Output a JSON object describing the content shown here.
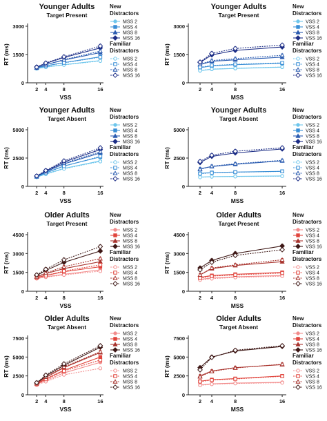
{
  "chart_data": [
    {
      "type": "line",
      "title": "Younger Adults",
      "subtitle": "Target Present",
      "xlabel": "VSS",
      "ylabel": "RT (ms)",
      "x": [
        2,
        4,
        8,
        16
      ],
      "xticks": [
        "2",
        "4",
        "8",
        "16"
      ],
      "ylim": [
        0,
        3000
      ],
      "yticks": [
        0,
        1500,
        3000
      ],
      "legend": {
        "group1": "New Distractors",
        "group2": "Familiar Distractors"
      },
      "palette": "blue",
      "series": [
        {
          "name": "MSS 2",
          "group": "new",
          "values": [
            760,
            840,
            960,
            1180
          ]
        },
        {
          "name": "MSS 4",
          "group": "new",
          "values": [
            790,
            900,
            1070,
            1380
          ]
        },
        {
          "name": "MSS 8",
          "group": "new",
          "values": [
            810,
            960,
            1210,
            1600
          ]
        },
        {
          "name": "MSS 16",
          "group": "new",
          "values": [
            840,
            1030,
            1340,
            1850
          ]
        },
        {
          "name": "MSS 2",
          "group": "familiar",
          "values": [
            750,
            830,
            950,
            1160
          ]
        },
        {
          "name": "MSS 4",
          "group": "familiar",
          "values": [
            780,
            890,
            1060,
            1360
          ]
        },
        {
          "name": "MSS 8",
          "group": "familiar",
          "values": [
            800,
            960,
            1230,
            1680
          ]
        },
        {
          "name": "MSS 16",
          "group": "familiar",
          "values": [
            830,
            1050,
            1380,
            1950
          ]
        }
      ]
    },
    {
      "type": "line",
      "title": "Younger Adults",
      "subtitle": "Target Present",
      "xlabel": "MSS",
      "ylabel": "RT (ms)",
      "x": [
        2,
        4,
        8,
        16
      ],
      "xticks": [
        "2",
        "4",
        "8",
        "16"
      ],
      "ylim": [
        0,
        3000
      ],
      "yticks": [
        0,
        1500,
        3000
      ],
      "legend": {
        "group1": "New Distractors",
        "group2": "Familiar Distractors"
      },
      "palette": "blue",
      "series": [
        {
          "name": "VSS 2",
          "group": "new",
          "values": [
            640,
            720,
            760,
            830
          ]
        },
        {
          "name": "VSS 4",
          "group": "new",
          "values": [
            800,
            900,
            960,
            1030
          ]
        },
        {
          "name": "VSS 8",
          "group": "new",
          "values": [
            960,
            1140,
            1220,
            1360
          ]
        },
        {
          "name": "VSS 16",
          "group": "new",
          "values": [
            1080,
            1480,
            1720,
            1900
          ]
        },
        {
          "name": "VSS 2",
          "group": "familiar",
          "values": [
            650,
            730,
            770,
            840
          ]
        },
        {
          "name": "VSS 4",
          "group": "familiar",
          "values": [
            820,
            920,
            980,
            1060
          ]
        },
        {
          "name": "VSS 8",
          "group": "familiar",
          "values": [
            980,
            1180,
            1280,
            1460
          ]
        },
        {
          "name": "VSS 16",
          "group": "familiar",
          "values": [
            1100,
            1560,
            1820,
            2000
          ]
        }
      ]
    },
    {
      "type": "line",
      "title": "Younger Adults",
      "subtitle": "Target Absent",
      "xlabel": "VSS",
      "ylabel": "RT (ms)",
      "x": [
        2,
        4,
        8,
        16
      ],
      "xticks": [
        "2",
        "4",
        "8",
        "16"
      ],
      "ylim": [
        0,
        5000
      ],
      "yticks": [
        0,
        2500,
        5000
      ],
      "legend": {
        "group1": "New Distractors",
        "group2": "Familiar Distractors"
      },
      "palette": "blue",
      "series": [
        {
          "name": "MSS 2",
          "group": "new",
          "values": [
            820,
            1100,
            1580,
            2250
          ]
        },
        {
          "name": "MSS 4",
          "group": "new",
          "values": [
            850,
            1200,
            1800,
            2600
          ]
        },
        {
          "name": "MSS 8",
          "group": "new",
          "values": [
            870,
            1280,
            1980,
            2950
          ]
        },
        {
          "name": "MSS 16",
          "group": "new",
          "values": [
            900,
            1350,
            2150,
            3250
          ]
        },
        {
          "name": "MSS 2",
          "group": "familiar",
          "values": [
            800,
            1080,
            1550,
            2200
          ]
        },
        {
          "name": "MSS 4",
          "group": "familiar",
          "values": [
            840,
            1180,
            1780,
            2650
          ]
        },
        {
          "name": "MSS 8",
          "group": "familiar",
          "values": [
            880,
            1300,
            2050,
            3050
          ]
        },
        {
          "name": "MSS 16",
          "group": "familiar",
          "values": [
            920,
            1400,
            2250,
            3400
          ]
        }
      ]
    },
    {
      "type": "line",
      "title": "Younger Adults",
      "subtitle": "Target Absent",
      "xlabel": "MSS",
      "ylabel": "RT (ms)",
      "x": [
        2,
        4,
        8,
        16
      ],
      "xticks": [
        "2",
        "4",
        "8",
        "16"
      ],
      "ylim": [
        0,
        5000
      ],
      "yticks": [
        0,
        2500,
        5000
      ],
      "legend": {
        "group1": "New Distractors",
        "group2": "Familiar Distractors"
      },
      "palette": "blue",
      "series": [
        {
          "name": "VSS 2",
          "group": "new",
          "values": [
            820,
            860,
            880,
            920
          ]
        },
        {
          "name": "VSS 4",
          "group": "new",
          "values": [
            1150,
            1220,
            1260,
            1330
          ]
        },
        {
          "name": "VSS 8",
          "group": "new",
          "values": [
            1550,
            1750,
            1950,
            2250
          ]
        },
        {
          "name": "VSS 16",
          "group": "new",
          "values": [
            2100,
            2650,
            2950,
            3300
          ]
        },
        {
          "name": "VSS 2",
          "group": "familiar",
          "values": [
            800,
            850,
            870,
            900
          ]
        },
        {
          "name": "VSS 4",
          "group": "familiar",
          "values": [
            1120,
            1200,
            1250,
            1320
          ]
        },
        {
          "name": "VSS 8",
          "group": "familiar",
          "values": [
            1500,
            1780,
            2000,
            2300
          ]
        },
        {
          "name": "VSS 16",
          "group": "familiar",
          "values": [
            2200,
            2750,
            3100,
            3400
          ]
        }
      ]
    },
    {
      "type": "line",
      "title": "Older Adults",
      "subtitle": "Target Present",
      "xlabel": "VSS",
      "ylabel": "RT (ms)",
      "x": [
        2,
        4,
        8,
        16
      ],
      "xticks": [
        "2",
        "4",
        "8",
        "16"
      ],
      "ylim": [
        0,
        4500
      ],
      "yticks": [
        0,
        1500,
        3000,
        4500
      ],
      "legend": {
        "group1": "New Distractors",
        "group2": "Familiar Distractors"
      },
      "palette": "red",
      "series": [
        {
          "name": "MSS 2",
          "group": "new",
          "values": [
            1050,
            1150,
            1350,
            1700
          ]
        },
        {
          "name": "MSS 4",
          "group": "new",
          "values": [
            1100,
            1250,
            1550,
            1950
          ]
        },
        {
          "name": "MSS 8",
          "group": "new",
          "values": [
            1150,
            1400,
            1800,
            2350
          ]
        },
        {
          "name": "MSS 16",
          "group": "new",
          "values": [
            1250,
            1650,
            2300,
            3200
          ]
        },
        {
          "name": "MSS 2",
          "group": "familiar",
          "values": [
            1000,
            1120,
            1300,
            1600
          ]
        },
        {
          "name": "MSS 4",
          "group": "familiar",
          "values": [
            1080,
            1250,
            1600,
            2100
          ]
        },
        {
          "name": "MSS 8",
          "group": "familiar",
          "values": [
            1150,
            1450,
            1950,
            2600
          ]
        },
        {
          "name": "MSS 16",
          "group": "familiar",
          "values": [
            1300,
            1750,
            2500,
            3550
          ]
        }
      ]
    },
    {
      "type": "line",
      "title": "Older Adults",
      "subtitle": "Target Present",
      "xlabel": "MSS",
      "ylabel": "RT (ms)",
      "x": [
        2,
        4,
        8,
        16
      ],
      "xticks": [
        "2",
        "4",
        "8",
        "16"
      ],
      "ylim": [
        0,
        4500
      ],
      "yticks": [
        0,
        1500,
        3000,
        4500
      ],
      "legend": {
        "group1": "New Distractors",
        "group2": "Familiar Distractors"
      },
      "palette": "red",
      "series": [
        {
          "name": "VSS 2",
          "group": "new",
          "values": [
            950,
            1050,
            1150,
            1250
          ]
        },
        {
          "name": "VSS 4",
          "group": "new",
          "values": [
            1100,
            1250,
            1350,
            1500
          ]
        },
        {
          "name": "VSS 8",
          "group": "new",
          "values": [
            1300,
            1800,
            2050,
            2350
          ]
        },
        {
          "name": "VSS 16",
          "group": "new",
          "values": [
            1850,
            2450,
            3000,
            3600
          ]
        },
        {
          "name": "VSS 2",
          "group": "familiar",
          "values": [
            900,
            1000,
            1100,
            1200
          ]
        },
        {
          "name": "VSS 4",
          "group": "familiar",
          "values": [
            1050,
            1200,
            1300,
            1450
          ]
        },
        {
          "name": "VSS 8",
          "group": "familiar",
          "values": [
            1300,
            1850,
            2100,
            2500
          ]
        },
        {
          "name": "VSS 16",
          "group": "familiar",
          "values": [
            1700,
            2300,
            2850,
            3300
          ]
        }
      ]
    },
    {
      "type": "line",
      "title": "Older Adults",
      "subtitle": "Target Absent",
      "xlabel": "VSS",
      "ylabel": "RT (ms)",
      "x": [
        2,
        4,
        8,
        16
      ],
      "xticks": [
        "2",
        "4",
        "8",
        "16"
      ],
      "ylim": [
        0,
        7500
      ],
      "yticks": [
        0,
        2500,
        5000,
        7500
      ],
      "legend": {
        "group1": "New Distractors",
        "group2": "Familiar Distractors"
      },
      "palette": "red",
      "series": [
        {
          "name": "MSS 2",
          "group": "new",
          "values": [
            1400,
            1900,
            2900,
            4300
          ]
        },
        {
          "name": "MSS 4",
          "group": "new",
          "values": [
            1450,
            2100,
            3250,
            5000
          ]
        },
        {
          "name": "MSS 8",
          "group": "new",
          "values": [
            1500,
            2300,
            3600,
            5600
          ]
        },
        {
          "name": "MSS 16",
          "group": "new",
          "values": [
            1550,
            2500,
            3900,
            6300
          ]
        },
        {
          "name": "MSS 2",
          "group": "familiar",
          "values": [
            1300,
            1750,
            2650,
            3500
          ]
        },
        {
          "name": "MSS 4",
          "group": "familiar",
          "values": [
            1400,
            2050,
            3150,
            4600
          ]
        },
        {
          "name": "MSS 8",
          "group": "familiar",
          "values": [
            1500,
            2350,
            3700,
            5700
          ]
        },
        {
          "name": "MSS 16",
          "group": "familiar",
          "values": [
            1600,
            2600,
            4100,
            6500
          ]
        }
      ]
    },
    {
      "type": "line",
      "title": "Older Adults",
      "subtitle": "Target Absent",
      "xlabel": "MSS",
      "ylabel": "RT (ms)",
      "x": [
        2,
        4,
        8,
        16
      ],
      "xticks": [
        "2",
        "4",
        "8",
        "16"
      ],
      "ylim": [
        0,
        7500
      ],
      "yticks": [
        0,
        2500,
        5000,
        7500
      ],
      "legend": {
        "group1": "New Distractors",
        "group2": "Familiar Distractors"
      },
      "palette": "red",
      "series": [
        {
          "name": "VSS 2",
          "group": "new",
          "values": [
            1300,
            1450,
            1550,
            1650
          ]
        },
        {
          "name": "VSS 4",
          "group": "new",
          "values": [
            1800,
            2000,
            2150,
            2500
          ]
        },
        {
          "name": "VSS 8",
          "group": "new",
          "values": [
            2500,
            3150,
            3600,
            4000
          ]
        },
        {
          "name": "VSS 16",
          "group": "new",
          "values": [
            3600,
            5000,
            5800,
            6400
          ]
        },
        {
          "name": "VSS 2",
          "group": "familiar",
          "values": [
            1250,
            1400,
            1500,
            1600
          ]
        },
        {
          "name": "VSS 4",
          "group": "familiar",
          "values": [
            1750,
            1950,
            2100,
            2450
          ]
        },
        {
          "name": "VSS 8",
          "group": "familiar",
          "values": [
            2400,
            3100,
            3550,
            4050
          ]
        },
        {
          "name": "VSS 16",
          "group": "familiar",
          "values": [
            3300,
            4950,
            5900,
            6500
          ]
        }
      ]
    }
  ],
  "colors": {
    "blue": [
      "#6ec6ec",
      "#3a8fd6",
      "#2a5bb0",
      "#1d2e86"
    ],
    "red": [
      "#f28c8c",
      "#e0443c",
      "#a8322c",
      "#3e1816"
    ]
  }
}
